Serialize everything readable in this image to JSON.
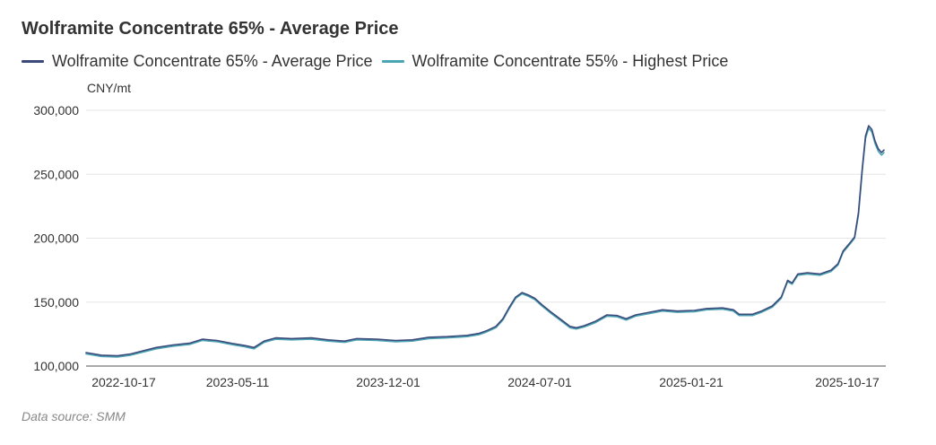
{
  "title": "Wolframite Concentrate 65% - Average Price",
  "source": "Data source:  SMM",
  "colors": {
    "series1": "#3b4a7a",
    "series2": "#4ba5b3",
    "grid": "#e6e6e6",
    "axis": "#555555",
    "text": "#333333"
  },
  "chart_data": {
    "type": "line",
    "title": "Wolframite Concentrate 65% - Average Price",
    "ylabel": "CNY/mt",
    "ylim": [
      100000,
      300000
    ],
    "yticks": [
      100000,
      150000,
      200000,
      250000,
      300000
    ],
    "ytick_labels": [
      "100,000",
      "150,000",
      "200,000",
      "250,000",
      "300,000"
    ],
    "xlim": [
      "2022-08-22",
      "2025-12-08"
    ],
    "xticks": [
      "2022-10-17",
      "2023-05-11",
      "2023-12-01",
      "2024-07-01",
      "2025-01-21",
      "2025-10-17"
    ],
    "grid": true,
    "legend": "top-left",
    "series": [
      {
        "name": "Wolframite Concentrate 65% - Average Price",
        "points": [
          [
            "2022-08-22",
            110500
          ],
          [
            "2022-09-15",
            108500
          ],
          [
            "2022-10-10",
            108000
          ],
          [
            "2022-10-31",
            109500
          ],
          [
            "2022-11-20",
            112000
          ],
          [
            "2022-12-10",
            114500
          ],
          [
            "2023-01-05",
            116500
          ],
          [
            "2023-02-01",
            118000
          ],
          [
            "2023-02-20",
            121000
          ],
          [
            "2023-03-15",
            120000
          ],
          [
            "2023-04-10",
            117500
          ],
          [
            "2023-04-28",
            116000
          ],
          [
            "2023-05-12",
            114500
          ],
          [
            "2023-05-28",
            119500
          ],
          [
            "2023-06-15",
            122000
          ],
          [
            "2023-07-10",
            121500
          ],
          [
            "2023-08-10",
            122000
          ],
          [
            "2023-09-05",
            120500
          ],
          [
            "2023-10-01",
            119500
          ],
          [
            "2023-10-20",
            121500
          ],
          [
            "2023-11-20",
            121000
          ],
          [
            "2023-12-20",
            120000
          ],
          [
            "2024-01-15",
            120500
          ],
          [
            "2024-02-10",
            122500
          ],
          [
            "2024-03-10",
            123000
          ],
          [
            "2024-04-10",
            124000
          ],
          [
            "2024-04-28",
            125500
          ],
          [
            "2024-05-10",
            127500
          ],
          [
            "2024-05-25",
            131000
          ],
          [
            "2024-06-05",
            137000
          ],
          [
            "2024-06-15",
            146000
          ],
          [
            "2024-06-25",
            154000
          ],
          [
            "2024-07-05",
            157500
          ],
          [
            "2024-07-15",
            155500
          ],
          [
            "2024-07-25",
            153000
          ],
          [
            "2024-08-05",
            148000
          ],
          [
            "2024-08-20",
            142000
          ],
          [
            "2024-09-05",
            136000
          ],
          [
            "2024-09-18",
            131000
          ],
          [
            "2024-09-28",
            130000
          ],
          [
            "2024-10-10",
            131500
          ],
          [
            "2024-10-28",
            135000
          ],
          [
            "2024-11-15",
            140000
          ],
          [
            "2024-12-01",
            139500
          ],
          [
            "2024-12-15",
            137000
          ],
          [
            "2024-12-30",
            140000
          ],
          [
            "2025-01-20",
            142000
          ],
          [
            "2025-02-10",
            144000
          ],
          [
            "2025-03-05",
            143000
          ],
          [
            "2025-04-01",
            143500
          ],
          [
            "2025-04-20",
            145000
          ],
          [
            "2025-05-15",
            145500
          ],
          [
            "2025-06-01",
            144000
          ],
          [
            "2025-06-10",
            140500
          ],
          [
            "2025-07-01",
            140500
          ],
          [
            "2025-07-15",
            143000
          ],
          [
            "2025-08-01",
            147000
          ],
          [
            "2025-08-15",
            154000
          ],
          [
            "2025-08-25",
            167000
          ],
          [
            "2025-09-01",
            165000
          ],
          [
            "2025-09-10",
            172000
          ],
          [
            "2025-09-25",
            173000
          ],
          [
            "2025-10-15",
            172000
          ],
          [
            "2025-11-01",
            175000
          ],
          [
            "2025-11-12",
            180000
          ],
          [
            "2025-11-20",
            190000
          ],
          [
            "2025-11-30",
            196000
          ],
          [
            "2025-12-08",
            201000
          ],
          [
            "2025-12-14",
            220000
          ],
          [
            "2025-12-20",
            255000
          ],
          [
            "2025-12-25",
            280000
          ],
          [
            "2025-12-30",
            288000
          ],
          [
            "2026-01-04",
            285000
          ],
          [
            "2026-01-09",
            276000
          ],
          [
            "2026-01-14",
            270000
          ],
          [
            "2026-01-19",
            267000
          ],
          [
            "2026-01-23",
            269000
          ]
        ]
      },
      {
        "name": "Wolframite Concentrate 55% - Highest Price",
        "points": [
          [
            "2022-08-22",
            109500
          ],
          [
            "2022-09-15",
            107500
          ],
          [
            "2022-10-10",
            107000
          ],
          [
            "2022-10-31",
            108500
          ],
          [
            "2022-11-20",
            111000
          ],
          [
            "2022-12-10",
            113500
          ],
          [
            "2023-01-05",
            115500
          ],
          [
            "2023-02-01",
            117000
          ],
          [
            "2023-02-20",
            120000
          ],
          [
            "2023-03-15",
            119000
          ],
          [
            "2023-04-10",
            116500
          ],
          [
            "2023-04-28",
            115000
          ],
          [
            "2023-05-12",
            113500
          ],
          [
            "2023-05-28",
            118500
          ],
          [
            "2023-06-15",
            121000
          ],
          [
            "2023-07-10",
            120500
          ],
          [
            "2023-08-10",
            121000
          ],
          [
            "2023-09-05",
            119500
          ],
          [
            "2023-10-01",
            118500
          ],
          [
            "2023-10-20",
            120500
          ],
          [
            "2023-11-20",
            120000
          ],
          [
            "2023-12-20",
            119000
          ],
          [
            "2024-01-15",
            119500
          ],
          [
            "2024-02-10",
            121500
          ],
          [
            "2024-03-10",
            122000
          ],
          [
            "2024-04-10",
            123000
          ],
          [
            "2024-04-28",
            124500
          ],
          [
            "2024-05-10",
            126500
          ],
          [
            "2024-05-25",
            130000
          ],
          [
            "2024-06-05",
            136000
          ],
          [
            "2024-06-15",
            145000
          ],
          [
            "2024-06-25",
            153000
          ],
          [
            "2024-07-05",
            156500
          ],
          [
            "2024-07-15",
            154500
          ],
          [
            "2024-07-25",
            152000
          ],
          [
            "2024-08-05",
            147000
          ],
          [
            "2024-08-20",
            141000
          ],
          [
            "2024-09-05",
            135000
          ],
          [
            "2024-09-18",
            130000
          ],
          [
            "2024-09-28",
            129000
          ],
          [
            "2024-10-10",
            130500
          ],
          [
            "2024-10-28",
            134000
          ],
          [
            "2024-11-15",
            139000
          ],
          [
            "2024-12-01",
            138500
          ],
          [
            "2024-12-15",
            136000
          ],
          [
            "2024-12-30",
            139000
          ],
          [
            "2025-01-20",
            141000
          ],
          [
            "2025-02-10",
            143000
          ],
          [
            "2025-03-05",
            142000
          ],
          [
            "2025-04-01",
            142500
          ],
          [
            "2025-04-20",
            144000
          ],
          [
            "2025-05-15",
            144500
          ],
          [
            "2025-06-01",
            143000
          ],
          [
            "2025-06-10",
            139500
          ],
          [
            "2025-07-01",
            139500
          ],
          [
            "2025-07-15",
            142000
          ],
          [
            "2025-08-01",
            146000
          ],
          [
            "2025-08-15",
            153000
          ],
          [
            "2025-08-25",
            166000
          ],
          [
            "2025-09-01",
            164000
          ],
          [
            "2025-09-10",
            171000
          ],
          [
            "2025-09-25",
            172000
          ],
          [
            "2025-10-15",
            171000
          ],
          [
            "2025-11-01",
            174000
          ],
          [
            "2025-11-12",
            179000
          ],
          [
            "2025-11-20",
            189000
          ],
          [
            "2025-11-30",
            195000
          ],
          [
            "2025-12-08",
            200000
          ],
          [
            "2025-12-14",
            218000
          ],
          [
            "2025-12-20",
            253000
          ],
          [
            "2025-12-25",
            278000
          ],
          [
            "2025-12-30",
            286000
          ],
          [
            "2026-01-04",
            283000
          ],
          [
            "2026-01-09",
            274000
          ],
          [
            "2026-01-14",
            268000
          ],
          [
            "2026-01-19",
            265000
          ],
          [
            "2026-01-23",
            267000
          ]
        ]
      }
    ]
  }
}
